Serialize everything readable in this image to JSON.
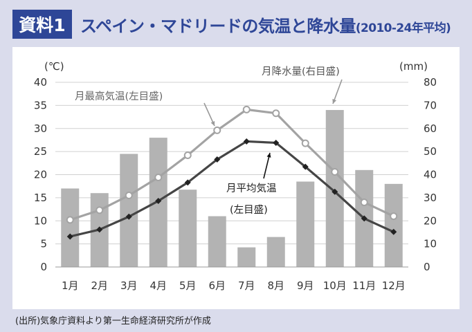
{
  "header": {
    "badge": "資料1",
    "title_main": "スペイン・マドリードの気温と降水量",
    "title_sub": "(2010-24年平均)"
  },
  "source": "(出所)気象庁資料より第一生命経済研究所が作成",
  "colors": {
    "brand": "#2e4697",
    "frame": "#dadcec",
    "bars": "#b3b3b3",
    "max_temp": "#a3a3a3",
    "avg_temp": "#454545",
    "grid": "#d0d0d0"
  },
  "chart_data": {
    "type": "bar+line",
    "categories": [
      "1月",
      "2月",
      "3月",
      "4月",
      "5月",
      "6月",
      "7月",
      "8月",
      "9月",
      "10月",
      "11月",
      "12月"
    ],
    "y_left": {
      "unit": "(℃)",
      "min": 0,
      "max": 40,
      "ticks": [
        0,
        5,
        10,
        15,
        20,
        25,
        30,
        35,
        40
      ]
    },
    "y_right": {
      "unit": "(mm)",
      "min": 0,
      "max": 80,
      "ticks": [
        0,
        10,
        20,
        30,
        40,
        50,
        60,
        70,
        80
      ]
    },
    "grid": true,
    "series": [
      {
        "name": "月降水量(右目盛)",
        "type": "bar",
        "axis": "right",
        "values": [
          34,
          32,
          49,
          56,
          33.5,
          22,
          8.5,
          13,
          37,
          68,
          42,
          36
        ]
      },
      {
        "name": "月最高気温(左目盛)",
        "type": "line",
        "marker": "circle",
        "axis": "left",
        "values": [
          10.2,
          12.3,
          15.5,
          19.4,
          24.2,
          29.6,
          34.1,
          33.3,
          26.8,
          20.6,
          14,
          11
        ]
      },
      {
        "name": "月平均気温",
        "name_line2": "(左目盛)",
        "type": "line",
        "marker": "diamond",
        "axis": "left",
        "values": [
          6.6,
          8.1,
          10.9,
          14.3,
          18.3,
          23.3,
          27.2,
          26.9,
          21.7,
          16.3,
          10.5,
          7.6
        ]
      }
    ]
  }
}
